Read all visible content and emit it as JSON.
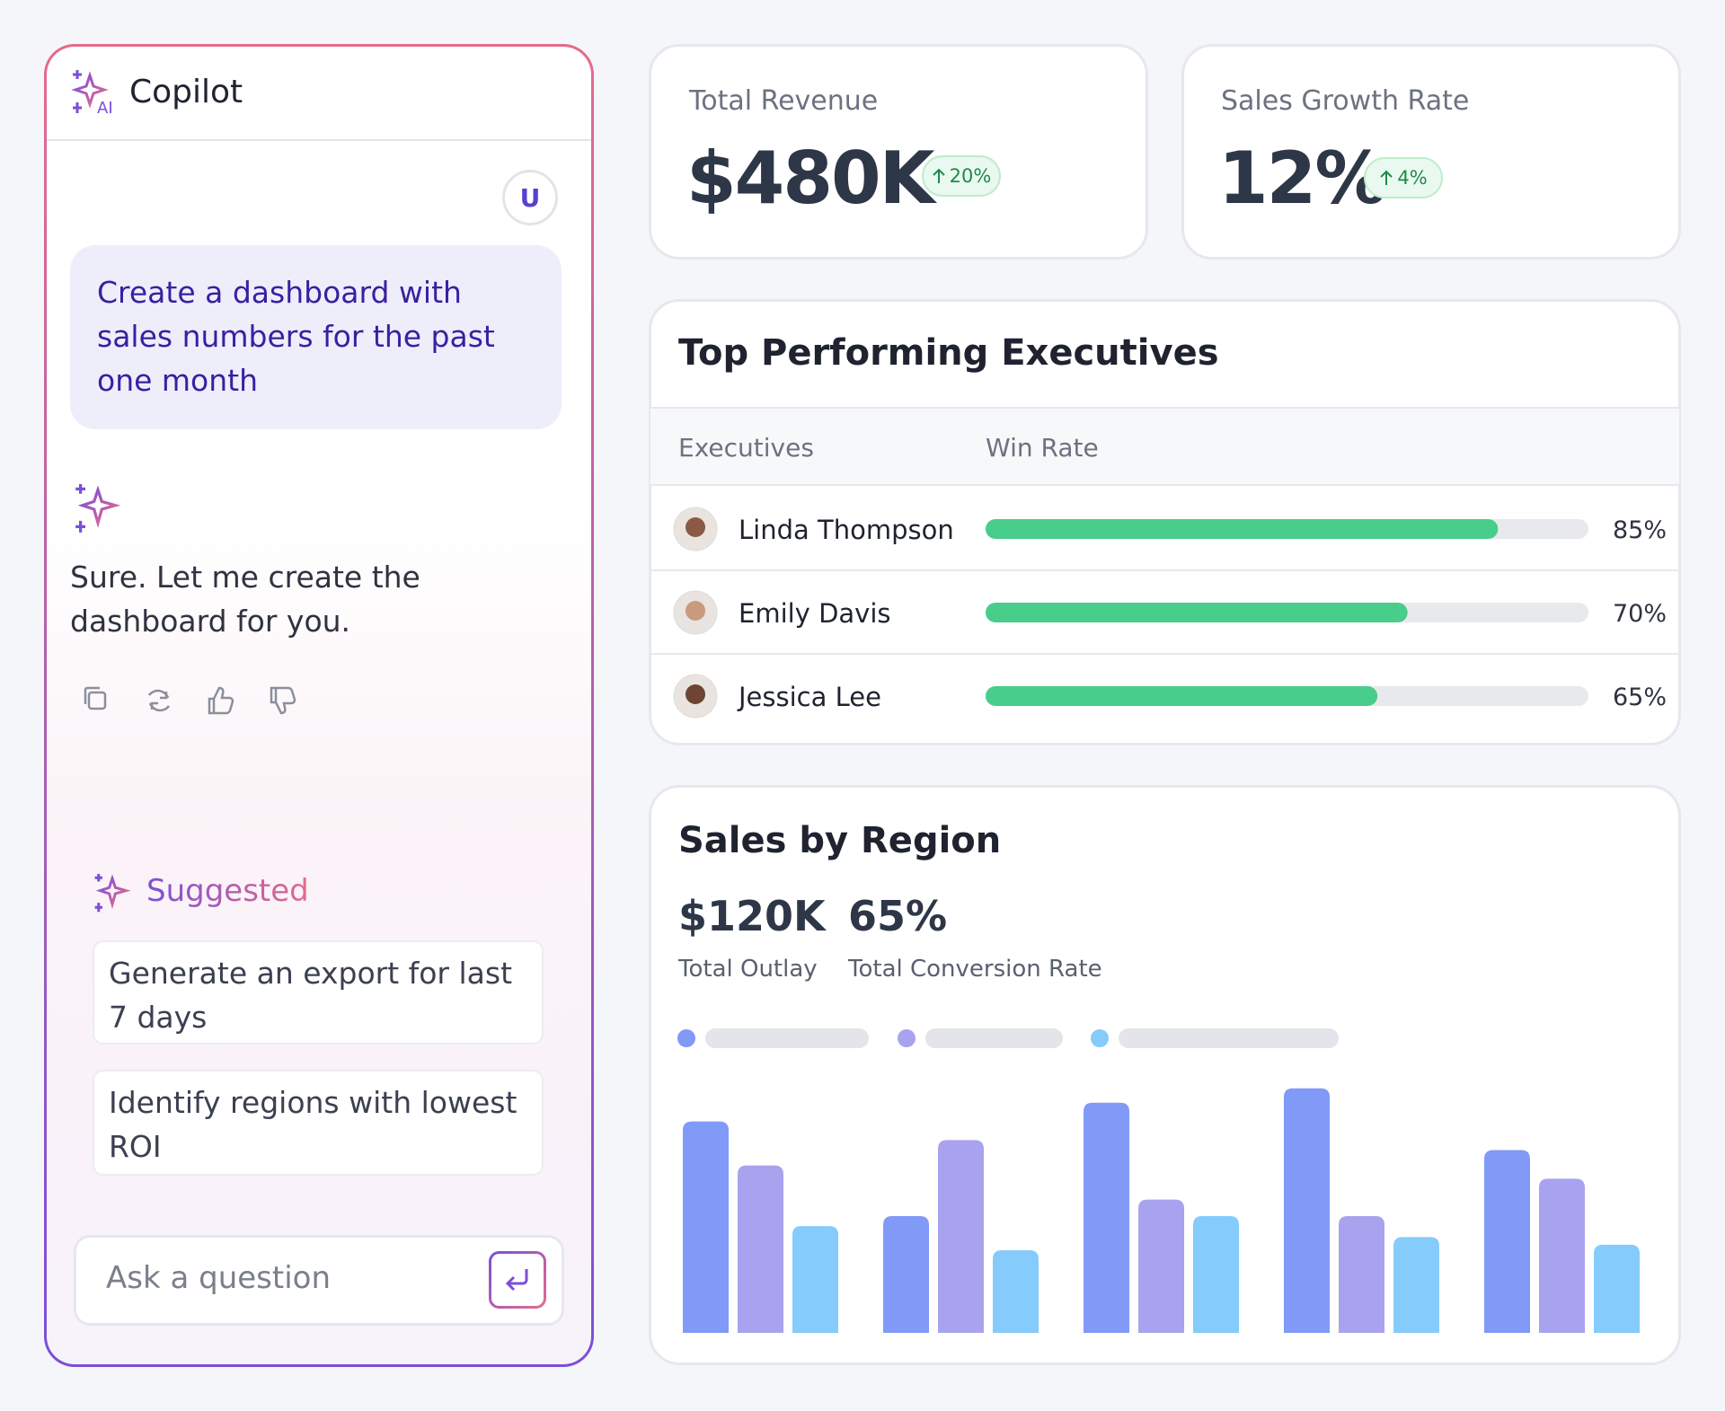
{
  "copilot": {
    "title": "Copilot",
    "ai_badge": "AI",
    "user_avatar": "U",
    "user_message": "Create a dashboard with sales numbers for the past one month",
    "assistant_message": "Sure. Let me create the dashboard for you.",
    "suggested_title": "Suggested",
    "suggestions": [
      "Generate an export for last 7 days",
      "Identify regions with lowest ROI"
    ],
    "input_placeholder": "Ask a question"
  },
  "cards": [
    {
      "label": "Total Revenue",
      "value": "$480K",
      "change": "20%"
    },
    {
      "label": "Sales Growth Rate",
      "value": "12%",
      "change": "4%"
    }
  ],
  "chart_data": [
    {
      "type": "progress",
      "title": "Top Performing Executives",
      "columns": [
        "Executives",
        "Win Rate"
      ],
      "categories": [
        "Linda Thompson",
        "Emily Davis",
        "Jessica Lee"
      ],
      "values": [
        85,
        70,
        65
      ],
      "value_labels": [
        "85%",
        "70%",
        "65%"
      ],
      "xlim": [
        0,
        100
      ],
      "color": "#48cd8a"
    },
    {
      "type": "bar",
      "title": "Sales by Region",
      "stats": [
        {
          "value": "$120K",
          "label": "Total Outlay"
        },
        {
          "value": "65%",
          "label": "Total Conversion Rate"
        }
      ],
      "categories": [
        null,
        null,
        null,
        null,
        null
      ],
      "series": [
        {
          "color": "#8199f7",
          "values": [
            192,
            106,
            209,
            222,
            166
          ]
        },
        {
          "color": "#a9a2ef",
          "values": [
            152,
            175,
            121,
            106,
            140
          ]
        },
        {
          "color": "#85cbfb",
          "values": [
            97,
            75,
            106,
            87,
            80
          ]
        }
      ],
      "ylim": [
        0,
        230
      ]
    }
  ]
}
